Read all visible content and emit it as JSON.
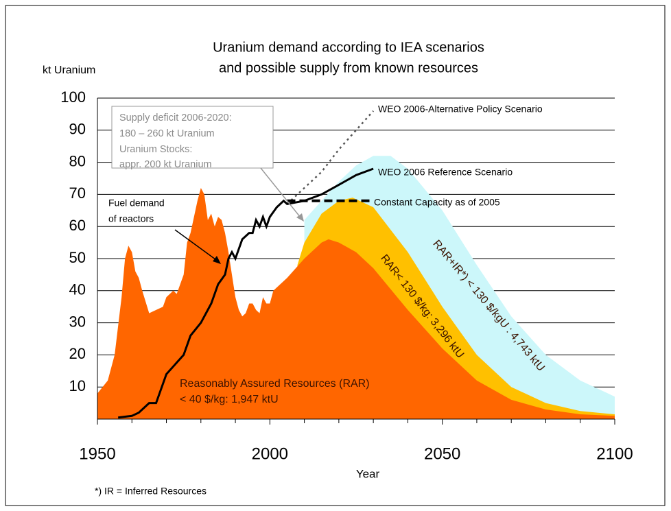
{
  "chart_data": {
    "type": "area",
    "title": [
      "Uranium demand according to IEA scenarios",
      "and possible supply from known resources"
    ],
    "y_label": "kt Uranium",
    "x_label": "Year",
    "footnote": "*) IR = Inferred Resources",
    "xlim": [
      1950,
      2100
    ],
    "xticks": [
      1950,
      2000,
      2050,
      2100
    ],
    "xminorticks": [
      1960,
      1970,
      1980,
      1990,
      2010,
      2020,
      2030,
      2040,
      2060,
      2070,
      2080,
      2090
    ],
    "ylim": [
      0,
      100
    ],
    "yticks": [
      10,
      20,
      30,
      40,
      50,
      60,
      70,
      80,
      90,
      100
    ],
    "grid": true,
    "series": [
      {
        "type": "area",
        "color": "#ccf7fa",
        "x": [
          2010,
          2015,
          2020,
          2025,
          2030,
          2035,
          2040,
          2050,
          2060,
          2070,
          2080,
          2090,
          2100
        ],
        "values": [
          62,
          68,
          74,
          79,
          82,
          82,
          78,
          65,
          48,
          32,
          20,
          12,
          7
        ]
      },
      {
        "type": "area",
        "color": "#ffc000",
        "x": [
          2008,
          2010,
          2015,
          2020,
          2024,
          2030,
          2040,
          2050,
          2060,
          2070,
          2080,
          2090,
          2100
        ],
        "values": [
          48,
          55,
          64,
          68,
          69,
          66,
          52,
          35,
          20,
          10,
          5,
          2.5,
          1.5
        ]
      },
      {
        "type": "area",
        "color": "#ff6600",
        "x": [
          1950,
          1953,
          1955,
          1957,
          1958,
          1959,
          1960,
          1961,
          1962,
          1963,
          1965,
          1967,
          1969,
          1970,
          1972,
          1973,
          1975,
          1976,
          1977,
          1979,
          1980,
          1981,
          1982,
          1983,
          1984,
          1985,
          1986,
          1987,
          1988,
          1989,
          1990,
          1991,
          1992,
          1993,
          1994,
          1995,
          1996,
          1997,
          1998,
          1999,
          2000,
          2001,
          2005,
          2010,
          2015,
          2017,
          2020,
          2025,
          2030,
          2040,
          2050,
          2060,
          2070,
          2080,
          2090,
          2100
        ],
        "values": [
          8,
          12,
          20,
          38,
          50,
          54,
          52,
          46,
          44,
          40,
          33,
          34,
          35,
          38,
          40,
          39,
          45,
          55,
          58,
          68,
          72,
          70,
          62,
          64,
          60,
          63,
          62,
          58,
          52,
          45,
          38,
          34,
          32,
          33,
          36,
          36,
          34,
          33,
          38,
          36,
          36,
          40,
          44,
          50,
          55,
          56,
          55,
          52,
          47,
          34,
          22,
          12,
          6,
          3,
          1.5,
          1
        ]
      },
      {
        "type": "line",
        "style": "dotted",
        "color": "#555555",
        "x": [
          2005,
          2010,
          2015,
          2020,
          2025,
          2030
        ],
        "values": [
          67,
          72,
          77,
          84,
          90,
          96
        ]
      },
      {
        "type": "line",
        "style": "dashed",
        "color": "#000000",
        "x": [
          2005,
          2030
        ],
        "values": [
          68,
          68
        ]
      },
      {
        "type": "line",
        "style": "solid",
        "color": "#000000",
        "x": [
          1956,
          1960,
          1962,
          1965,
          1967,
          1970,
          1975,
          1977,
          1980,
          1983,
          1985,
          1987,
          1988,
          1989,
          1990,
          1992,
          1994,
          1995,
          1996,
          1997,
          1998,
          1999,
          2000,
          2002,
          2004,
          2005,
          2010,
          2015,
          2020,
          2025,
          2030
        ],
        "values": [
          0.5,
          1,
          2,
          5,
          5,
          14,
          20,
          26,
          30,
          36,
          42,
          45,
          50,
          52,
          50,
          56,
          58,
          58,
          62,
          60,
          63,
          60,
          63,
          66,
          68,
          67,
          68,
          70,
          73,
          76,
          78
        ]
      }
    ],
    "annotations": [
      "WEO 2006-Alternative Policy Scenario",
      "WEO 2006 Reference Scenario",
      "Constant Capacity as of 2005",
      [
        "Fuel demand",
        "of reactors"
      ],
      [
        "Supply deficit 2006-2020:",
        "180 – 260 kt Uranium",
        "Uranium Stocks:",
        "appr. 200 kt Uranium"
      ],
      [
        "Reasonably Assured Resources (RAR)",
        " < 40 $/kg: 1,947 ktU"
      ],
      "RAR< 130 $/kg: 3,296 ktU",
      "RAR+IR*) < 130 $/kgU : 4,743 ktU"
    ]
  }
}
